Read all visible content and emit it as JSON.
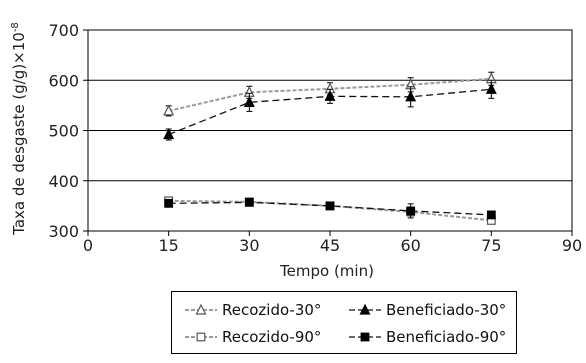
{
  "chart_data": {
    "type": "line",
    "title": "",
    "xlabel": "Tempo (min)",
    "ylabel": "Taxa de desgaste  (g/g)×10",
    "ylabel_exponent": "-8",
    "xlim": [
      0,
      90
    ],
    "ylim": [
      300,
      700
    ],
    "x_ticks": [
      0,
      15,
      30,
      45,
      60,
      75,
      90
    ],
    "y_ticks": [
      300,
      400,
      500,
      600,
      700
    ],
    "grid": "horizontal",
    "legend_position": "bottom-right",
    "x": [
      15,
      30,
      45,
      60,
      75
    ],
    "series": [
      {
        "name": "Recozido-30°",
        "values": [
          539,
          576,
          583,
          591,
          603
        ],
        "errors": [
          10,
          12,
          12,
          14,
          13
        ],
        "marker": "open-triangle",
        "line_style": "dashed",
        "color": "#9a9a9a"
      },
      {
        "name": "Beneficiado-30°",
        "values": [
          492,
          556,
          568,
          567,
          582
        ],
        "errors": [
          11,
          18,
          14,
          20,
          18
        ],
        "marker": "filled-triangle",
        "line_style": "dashed",
        "color": "#111111"
      },
      {
        "name": "Recozido-90°",
        "values": [
          360,
          358,
          350,
          338,
          321
        ],
        "errors": [
          6,
          5,
          6,
          8,
          6
        ],
        "marker": "open-square",
        "line_style": "dashed",
        "color": "#9a9a9a"
      },
      {
        "name": "Beneficiado-90°",
        "values": [
          355,
          357,
          350,
          340,
          332
        ],
        "errors": [
          5,
          5,
          6,
          14,
          6
        ],
        "marker": "filled-square",
        "line_style": "dashed",
        "color": "#111111"
      }
    ]
  }
}
